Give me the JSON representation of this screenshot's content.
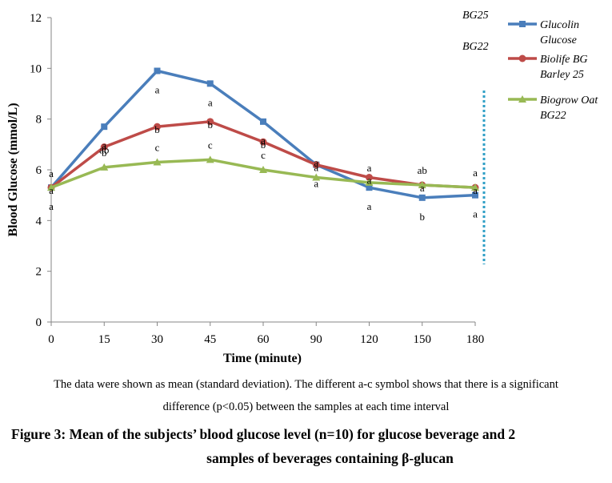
{
  "chart_data": {
    "type": "line",
    "xlabel": "Time  (minute)",
    "ylabel": "Blood Glucose (mmol/L)",
    "categories": [
      "0",
      "15",
      "30",
      "45",
      "60",
      "90",
      "120",
      "150",
      "180"
    ],
    "ylim": [
      0,
      12
    ],
    "yticks": [
      "0",
      "2",
      "4",
      "6",
      "8",
      "10",
      "12"
    ],
    "grid": false,
    "legend_position": "right",
    "series": [
      {
        "name": "Glucolin Glucose",
        "color": "#4a7ebb",
        "marker": "square",
        "values": [
          5.3,
          7.7,
          9.9,
          9.4,
          7.9,
          6.2,
          5.3,
          4.9,
          5.0
        ],
        "letters": [
          "a",
          "a",
          "a",
          "a",
          "a",
          "a",
          "a",
          "b",
          "a"
        ]
      },
      {
        "name": "Biolife BG Barley 25",
        "color": "#be4b48",
        "marker": "circle",
        "values": [
          5.3,
          6.9,
          7.7,
          7.9,
          7.1,
          6.2,
          5.7,
          5.4,
          5.3
        ],
        "letters": [
          "a",
          "ab",
          "b",
          "b",
          "b",
          "a",
          "a",
          "a",
          "a"
        ]
      },
      {
        "name": "Biogrow Oat BG22",
        "color": "#98b954",
        "marker": "triangle",
        "values": [
          5.3,
          6.1,
          6.3,
          6.4,
          6.0,
          5.7,
          5.5,
          5.4,
          5.3
        ],
        "letters": [
          "a",
          "b",
          "c",
          "c",
          "c",
          "a",
          "a",
          "ab",
          "a"
        ]
      }
    ],
    "annotations": [
      "BG25",
      "BG22"
    ]
  },
  "caption_note": {
    "line1": "The data were shown as mean (standard deviation). The different a-c symbol shows that there is a significant",
    "line2": "difference (p<0.05) between the samples at each time interval"
  },
  "figure_caption": {
    "line1": "Figure 3: Mean of the subjects’ blood glucose level (n=10) for glucose beverage and 2",
    "line2": "samples of  beverages containing β-glucan"
  }
}
